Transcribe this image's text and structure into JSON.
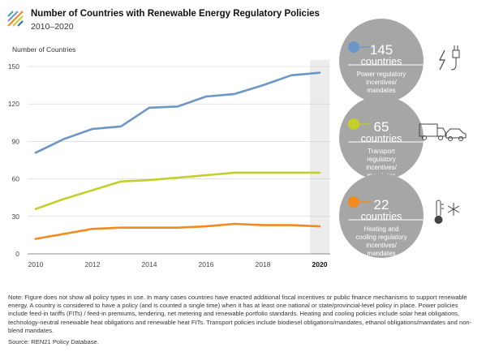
{
  "header": {
    "title": "Number of Countries with Renewable Energy Regulatory Policies",
    "subtitle": "2010–2020"
  },
  "chart_data": {
    "type": "line",
    "title": "Number of Countries with Renewable Energy Regulatory Policies",
    "subtitle": "2010–2020",
    "ylabel": "Number of Countries",
    "xlabel": "",
    "x": [
      2010,
      2011,
      2012,
      2013,
      2014,
      2015,
      2016,
      2017,
      2018,
      2019,
      2020
    ],
    "x_tick_labels": [
      "2010",
      "2012",
      "2014",
      "2016",
      "2018",
      "2020"
    ],
    "y_tick_labels": [
      "0",
      "30",
      "60",
      "90",
      "120",
      "150"
    ],
    "ylim": [
      0,
      150
    ],
    "grid": "horizontal",
    "highlight_year": 2020,
    "series": [
      {
        "key": "power",
        "color": "#6b97c8",
        "values": [
          81,
          92,
          100,
          102,
          117,
          118,
          126,
          128,
          135,
          143,
          145
        ]
      },
      {
        "key": "transport",
        "color": "#c4cf2a",
        "values": [
          36,
          44,
          51,
          58,
          59,
          61,
          63,
          65,
          65,
          65,
          65
        ]
      },
      {
        "key": "heating",
        "color": "#f28a1f",
        "values": [
          12,
          16,
          20,
          21,
          21,
          21,
          22,
          24,
          23,
          23,
          22
        ]
      }
    ]
  },
  "callouts": [
    {
      "value": "145",
      "unit": "countries",
      "label": "Power regulatory incentives/ mandates",
      "color": "#6b97c8",
      "icon": "plug-lightning-icon"
    },
    {
      "value": "65",
      "unit": "countries",
      "label": "Transport regulatory incentives/ mandates",
      "color": "#c4cf2a",
      "icon": "truck-car-icon"
    },
    {
      "value": "22",
      "unit": "countries",
      "label": "Heating and cooling regulatory incentives/ mandates",
      "color": "#f28a1f",
      "icon": "thermometer-snowflake-icon"
    }
  ],
  "footer": {
    "note": "Note: Figure does not show all policy types in use. In many cases countries have enacted additional fiscal incentives or public finance mechanisms to support renewable energy. A country is considered to have a policy (and is counted a single time) when it has at least one national or state/provincial-level policy in place. Power policies include feed-in tariffs (FITs) / feed-in premiums, tendering, net metering and renewable portfolio standards. Heating and cooling policies include solar heat obligations, technology-neutral renewable heat obligations and renewable heat FITs. Transport policies include biodiesel obligations/mandates, ethanol obligations/mandates and non-blend mandates.",
    "source": "Source: REN21 Policy Database."
  }
}
